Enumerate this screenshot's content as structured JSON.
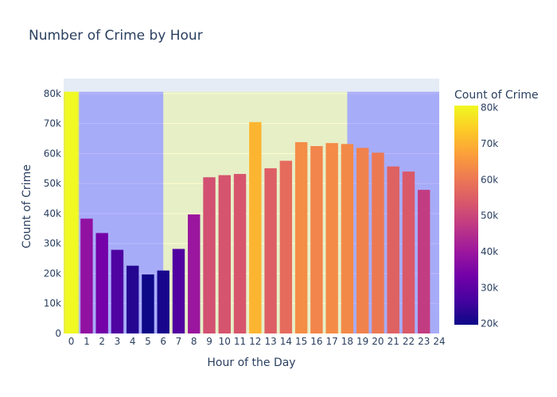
{
  "chart_data": {
    "type": "bar",
    "title": "Number of Crime by Hour",
    "xlabel": "Hour of the Day",
    "ylabel": "Count of Crime",
    "colorbar_title": "Count of Crime",
    "x": [
      0,
      1,
      2,
      3,
      4,
      5,
      6,
      7,
      8,
      9,
      10,
      11,
      12,
      13,
      14,
      15,
      16,
      17,
      18,
      19,
      20,
      21,
      22,
      23
    ],
    "values": [
      80600,
      38300,
      33500,
      27900,
      22600,
      19700,
      21000,
      28200,
      39700,
      52100,
      52800,
      53200,
      70500,
      55100,
      57600,
      63800,
      62500,
      63500,
      63200,
      61900,
      60300,
      55700,
      54000,
      47900
    ],
    "xlim": [
      -0.5,
      24
    ],
    "ylim": [
      0,
      85000
    ],
    "y_ticks": [
      0,
      10000,
      20000,
      30000,
      40000,
      50000,
      60000,
      70000,
      80000
    ],
    "y_tick_labels": [
      "0",
      "10k",
      "20k",
      "30k",
      "40k",
      "50k",
      "60k",
      "70k",
      "80k"
    ],
    "x_ticks": [
      0,
      1,
      2,
      3,
      4,
      5,
      6,
      7,
      8,
      9,
      10,
      11,
      12,
      13,
      14,
      15,
      16,
      17,
      18,
      19,
      20,
      21,
      22,
      23,
      24
    ],
    "x_tick_labels": [
      "0",
      "1",
      "2",
      "3",
      "4",
      "5",
      "6",
      "7",
      "8",
      "9",
      "10",
      "11",
      "12",
      "13",
      "14",
      "15",
      "16",
      "17",
      "18",
      "19",
      "20",
      "21",
      "22",
      "23",
      "24"
    ],
    "colorscale": [
      "#0d0887",
      "#46039f",
      "#7201a8",
      "#9c179e",
      "#bd3786",
      "#d8576b",
      "#ed7953",
      "#fb9f3a",
      "#fdca26",
      "#f0f921"
    ],
    "color_range": [
      19700,
      80600
    ],
    "colorbar_ticks": [
      20000,
      30000,
      40000,
      50000,
      60000,
      70000,
      80000
    ],
    "colorbar_tick_labels": [
      "20k",
      "30k",
      "40k",
      "50k",
      "60k",
      "70k",
      "80k"
    ],
    "shaded_regions": [
      {
        "x0": -0.5,
        "x1": 0.5,
        "y1": 80600,
        "color": "#e8ef2c",
        "opacity": 0.85
      },
      {
        "x0": 0.5,
        "x1": 6,
        "y1": 80600,
        "color": "#0000ff",
        "opacity": 0.27
      },
      {
        "x0": 6,
        "x1": 18,
        "y1": 80600,
        "color": "#f0f921",
        "opacity": 0.22
      },
      {
        "x0": 18,
        "x1": 24,
        "y1": 80600,
        "color": "#0000ff",
        "opacity": 0.27
      }
    ],
    "plot_bgcolor": "#e5ecf6",
    "grid": true,
    "legend": "colorbar-right"
  }
}
